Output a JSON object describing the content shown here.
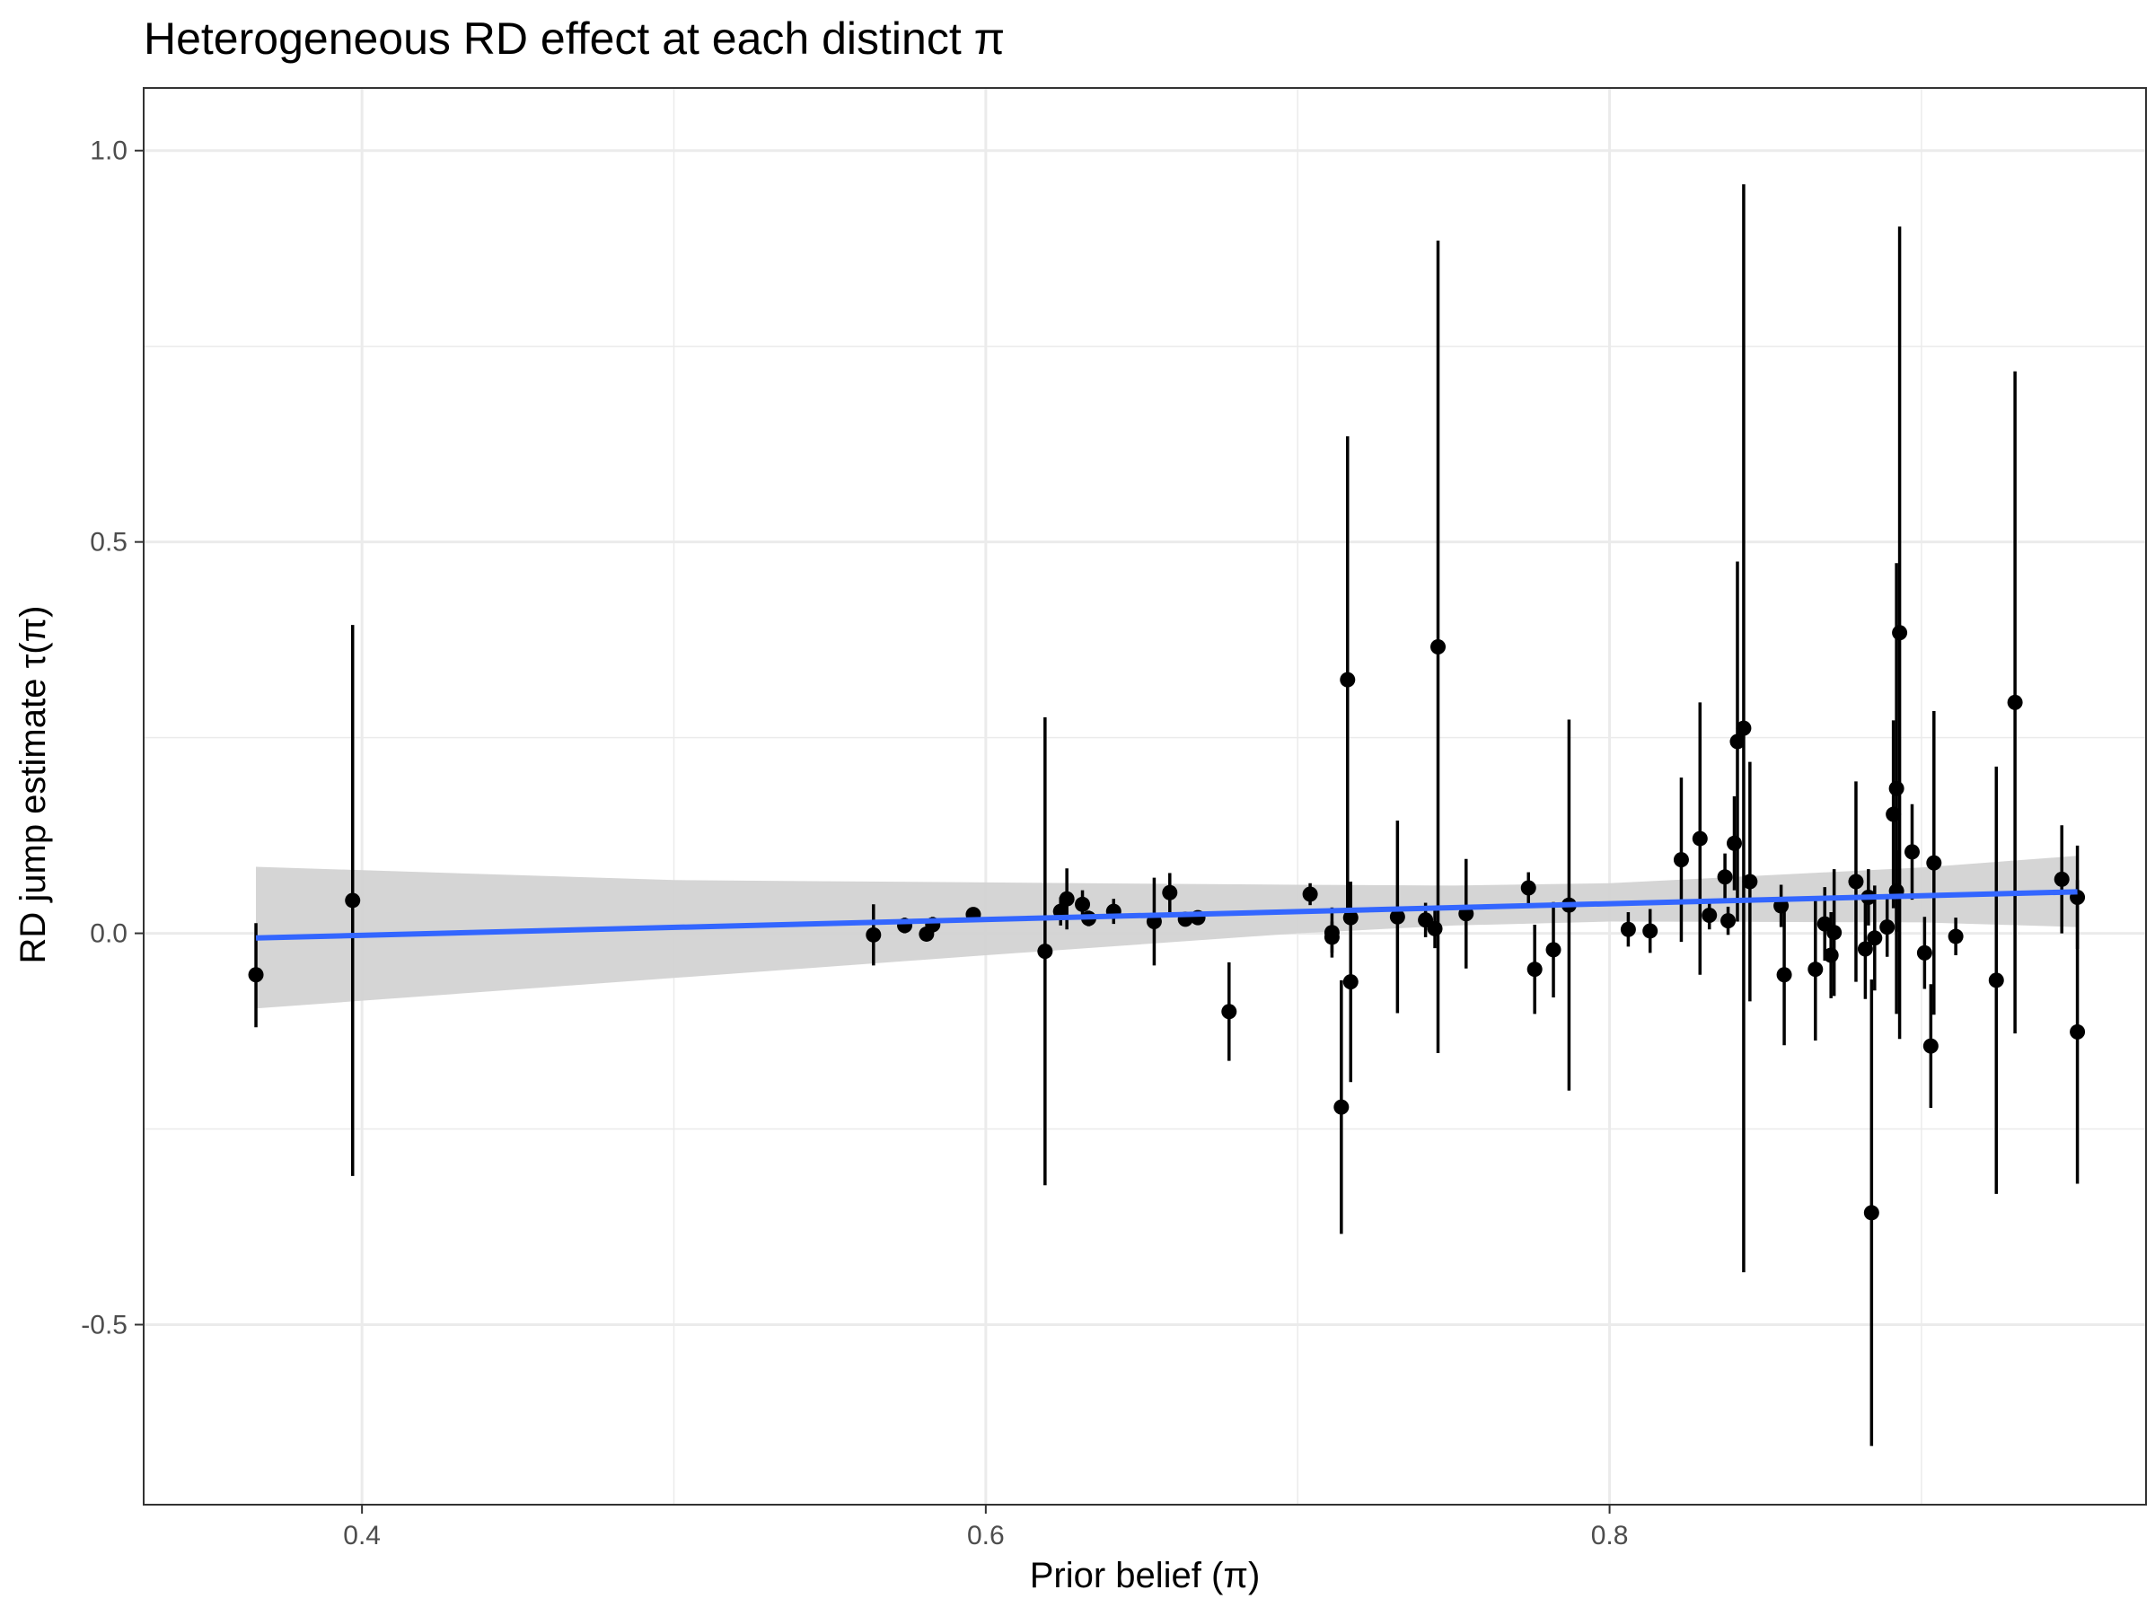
{
  "chart_data": {
    "type": "scatter",
    "title": "Heterogeneous RD effect at each distinct π",
    "xlabel": "Prior belief (π)",
    "ylabel": "RD jump estimate τ(π)",
    "xlim": [
      0.33,
      0.972
    ],
    "ylim": [
      -0.73,
      1.08
    ],
    "x_ticks": [
      0.4,
      0.6,
      0.8
    ],
    "x_tick_labels": [
      "0.4",
      "0.6",
      "0.8"
    ],
    "x_minor_ticks": [
      0.5,
      0.7,
      0.9
    ],
    "y_ticks": [
      -0.5,
      0.0,
      0.5,
      1.0
    ],
    "y_tick_labels": [
      "-0.5",
      "0.0",
      "0.5",
      "1.0"
    ],
    "y_minor_ticks": [
      -0.25,
      0.25,
      0.75
    ],
    "grid": true,
    "legend": "none",
    "colors": {
      "points": "#000000",
      "fit_line": "#3366ff",
      "confidence_band": "#d3d3d3",
      "grid": "#ebebeb",
      "panel_border": "#333333"
    },
    "series": [
      {
        "type": "pointrange",
        "points": [
          {
            "x": 0.366,
            "y": -0.053,
            "lo": -0.12,
            "hi": 0.013
          },
          {
            "x": 0.397,
            "y": 0.042,
            "lo": -0.31,
            "hi": 0.394
          },
          {
            "x": 0.564,
            "y": -0.002,
            "lo": -0.041,
            "hi": 0.037
          },
          {
            "x": 0.574,
            "y": 0.01,
            "lo": 0.0,
            "hi": 0.02
          },
          {
            "x": 0.581,
            "y": -0.001,
            "lo": -0.01,
            "hi": 0.008
          },
          {
            "x": 0.583,
            "y": 0.011,
            "lo": 0.001,
            "hi": 0.021
          },
          {
            "x": 0.596,
            "y": 0.024,
            "lo": 0.015,
            "hi": 0.033
          },
          {
            "x": 0.619,
            "y": -0.023,
            "lo": -0.322,
            "hi": 0.276
          },
          {
            "x": 0.624,
            "y": 0.028,
            "lo": 0.01,
            "hi": 0.046
          },
          {
            "x": 0.626,
            "y": 0.044,
            "lo": 0.005,
            "hi": 0.083
          },
          {
            "x": 0.631,
            "y": 0.037,
            "lo": 0.019,
            "hi": 0.055
          },
          {
            "x": 0.633,
            "y": 0.019,
            "lo": 0.009,
            "hi": 0.029
          },
          {
            "x": 0.641,
            "y": 0.028,
            "lo": 0.012,
            "hi": 0.044
          },
          {
            "x": 0.654,
            "y": 0.015,
            "lo": -0.041,
            "hi": 0.071
          },
          {
            "x": 0.659,
            "y": 0.052,
            "lo": 0.027,
            "hi": 0.077
          },
          {
            "x": 0.664,
            "y": 0.018,
            "lo": 0.01,
            "hi": 0.026
          },
          {
            "x": 0.668,
            "y": 0.02,
            "lo": 0.012,
            "hi": 0.028
          },
          {
            "x": 0.678,
            "y": -0.1,
            "lo": -0.163,
            "hi": -0.037
          },
          {
            "x": 0.704,
            "y": 0.05,
            "lo": 0.036,
            "hi": 0.064
          },
          {
            "x": 0.711,
            "y": 0.001,
            "lo": -0.031,
            "hi": 0.033
          },
          {
            "x": 0.711,
            "y": -0.005,
            "lo": -0.025,
            "hi": 0.015
          },
          {
            "x": 0.714,
            "y": -0.222,
            "lo": -0.384,
            "hi": -0.06
          },
          {
            "x": 0.716,
            "y": 0.324,
            "lo": 0.013,
            "hi": 0.635
          },
          {
            "x": 0.717,
            "y": -0.062,
            "lo": -0.19,
            "hi": 0.066
          },
          {
            "x": 0.717,
            "y": 0.02,
            "lo": -0.022,
            "hi": 0.062
          },
          {
            "x": 0.732,
            "y": 0.021,
            "lo": -0.102,
            "hi": 0.144
          },
          {
            "x": 0.741,
            "y": 0.017,
            "lo": -0.005,
            "hi": 0.039
          },
          {
            "x": 0.744,
            "y": 0.006,
            "lo": -0.019,
            "hi": 0.031
          },
          {
            "x": 0.745,
            "y": 0.366,
            "lo": -0.153,
            "hi": 0.885
          },
          {
            "x": 0.754,
            "y": 0.025,
            "lo": -0.045,
            "hi": 0.095
          },
          {
            "x": 0.774,
            "y": 0.058,
            "lo": 0.038,
            "hi": 0.078
          },
          {
            "x": 0.776,
            "y": -0.046,
            "lo": -0.103,
            "hi": 0.011
          },
          {
            "x": 0.782,
            "y": -0.021,
            "lo": -0.082,
            "hi": 0.04
          },
          {
            "x": 0.787,
            "y": 0.036,
            "lo": -0.201,
            "hi": 0.273
          },
          {
            "x": 0.806,
            "y": 0.005,
            "lo": -0.017,
            "hi": 0.027
          },
          {
            "x": 0.813,
            "y": 0.003,
            "lo": -0.025,
            "hi": 0.031
          },
          {
            "x": 0.823,
            "y": 0.094,
            "lo": -0.011,
            "hi": 0.199
          },
          {
            "x": 0.829,
            "y": 0.121,
            "lo": -0.053,
            "hi": 0.295
          },
          {
            "x": 0.832,
            "y": 0.023,
            "lo": 0.005,
            "hi": 0.041
          },
          {
            "x": 0.837,
            "y": 0.072,
            "lo": 0.042,
            "hi": 0.102
          },
          {
            "x": 0.838,
            "y": 0.016,
            "lo": -0.002,
            "hi": 0.034
          },
          {
            "x": 0.84,
            "y": 0.115,
            "lo": 0.055,
            "hi": 0.175
          },
          {
            "x": 0.841,
            "y": 0.245,
            "lo": 0.015,
            "hi": 0.475
          },
          {
            "x": 0.843,
            "y": 0.262,
            "lo": -0.433,
            "hi": 0.957
          },
          {
            "x": 0.845,
            "y": 0.066,
            "lo": -0.087,
            "hi": 0.219
          },
          {
            "x": 0.855,
            "y": 0.035,
            "lo": 0.008,
            "hi": 0.062
          },
          {
            "x": 0.856,
            "y": -0.053,
            "lo": -0.143,
            "hi": 0.037
          },
          {
            "x": 0.866,
            "y": -0.046,
            "lo": -0.137,
            "hi": 0.045
          },
          {
            "x": 0.869,
            "y": 0.012,
            "lo": -0.035,
            "hi": 0.059
          },
          {
            "x": 0.871,
            "y": -0.028,
            "lo": -0.083,
            "hi": 0.027
          },
          {
            "x": 0.872,
            "y": 0.001,
            "lo": -0.08,
            "hi": 0.082
          },
          {
            "x": 0.879,
            "y": 0.066,
            "lo": -0.062,
            "hi": 0.194
          },
          {
            "x": 0.882,
            "y": -0.02,
            "lo": -0.084,
            "hi": 0.044
          },
          {
            "x": 0.883,
            "y": 0.046,
            "lo": 0.01,
            "hi": 0.082
          },
          {
            "x": 0.884,
            "y": -0.357,
            "lo": -0.655,
            "hi": -0.059
          },
          {
            "x": 0.885,
            "y": -0.006,
            "lo": -0.073,
            "hi": 0.061
          },
          {
            "x": 0.889,
            "y": 0.008,
            "lo": -0.03,
            "hi": 0.046
          },
          {
            "x": 0.891,
            "y": 0.152,
            "lo": 0.032,
            "hi": 0.272
          },
          {
            "x": 0.892,
            "y": 0.185,
            "lo": -0.103,
            "hi": 0.473
          },
          {
            "x": 0.892,
            "y": 0.054,
            "lo": 0.002,
            "hi": 0.106
          },
          {
            "x": 0.893,
            "y": 0.384,
            "lo": -0.135,
            "hi": 0.903
          },
          {
            "x": 0.897,
            "y": 0.104,
            "lo": 0.043,
            "hi": 0.165
          },
          {
            "x": 0.901,
            "y": -0.025,
            "lo": -0.071,
            "hi": 0.021
          },
          {
            "x": 0.903,
            "y": -0.144,
            "lo": -0.223,
            "hi": -0.065
          },
          {
            "x": 0.904,
            "y": 0.09,
            "lo": -0.104,
            "hi": 0.284
          },
          {
            "x": 0.911,
            "y": -0.004,
            "lo": -0.028,
            "hi": 0.02
          },
          {
            "x": 0.924,
            "y": -0.06,
            "lo": -0.333,
            "hi": 0.213
          },
          {
            "x": 0.93,
            "y": 0.295,
            "lo": -0.128,
            "hi": 0.718
          },
          {
            "x": 0.945,
            "y": 0.069,
            "lo": 0.0,
            "hi": 0.138
          },
          {
            "x": 0.95,
            "y": 0.046,
            "lo": -0.02,
            "hi": 0.112
          },
          {
            "x": 0.95,
            "y": -0.126,
            "lo": -0.32,
            "hi": 0.068
          }
        ]
      },
      {
        "type": "linear_fit",
        "x": [
          0.366,
          0.95
        ],
        "y": [
          -0.006,
          0.053
        ]
      },
      {
        "type": "confidence_band",
        "x": [
          0.366,
          0.5,
          0.6,
          0.7,
          0.75,
          0.8,
          0.9,
          0.95
        ],
        "lo": [
          -0.096,
          -0.057,
          -0.028,
          0.0,
          0.01,
          0.015,
          0.014,
          0.008
        ],
        "hi": [
          0.085,
          0.068,
          0.065,
          0.062,
          0.061,
          0.064,
          0.084,
          0.099
        ]
      }
    ]
  }
}
